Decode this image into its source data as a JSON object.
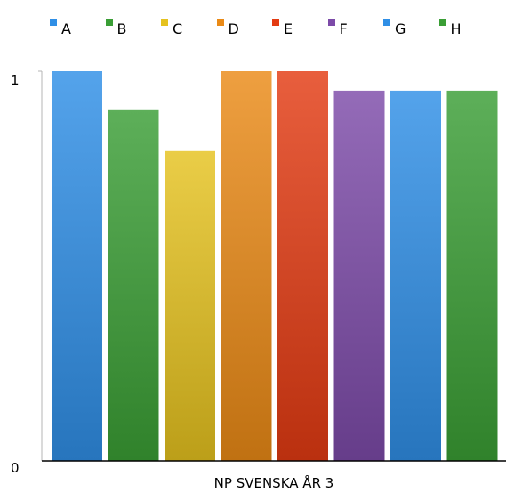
{
  "chart_data": {
    "type": "bar",
    "title": "",
    "xlabel": "NP SVENSKA ÅR 3",
    "ylabel": "",
    "ylim": [
      0,
      1
    ],
    "yticks": [
      "0",
      "1"
    ],
    "categories": [
      "NP SVENSKA ÅR 3"
    ],
    "series": [
      {
        "name": "A",
        "values": [
          1.0
        ],
        "color": "#2f8fe6"
      },
      {
        "name": "B",
        "values": [
          0.9
        ],
        "color": "#3a9e35"
      },
      {
        "name": "C",
        "values": [
          0.795
        ],
        "color": "#e5c21f"
      },
      {
        "name": "D",
        "values": [
          1.0
        ],
        "color": "#ea8a16"
      },
      {
        "name": "E",
        "values": [
          1.0
        ],
        "color": "#e33b12"
      },
      {
        "name": "F",
        "values": [
          0.95
        ],
        "color": "#7c4aa8"
      },
      {
        "name": "G",
        "values": [
          0.95
        ],
        "color": "#2f8fe6"
      },
      {
        "name": "H",
        "values": [
          0.95
        ],
        "color": "#3a9e35"
      }
    ],
    "grid": false,
    "legend_position": "top"
  }
}
